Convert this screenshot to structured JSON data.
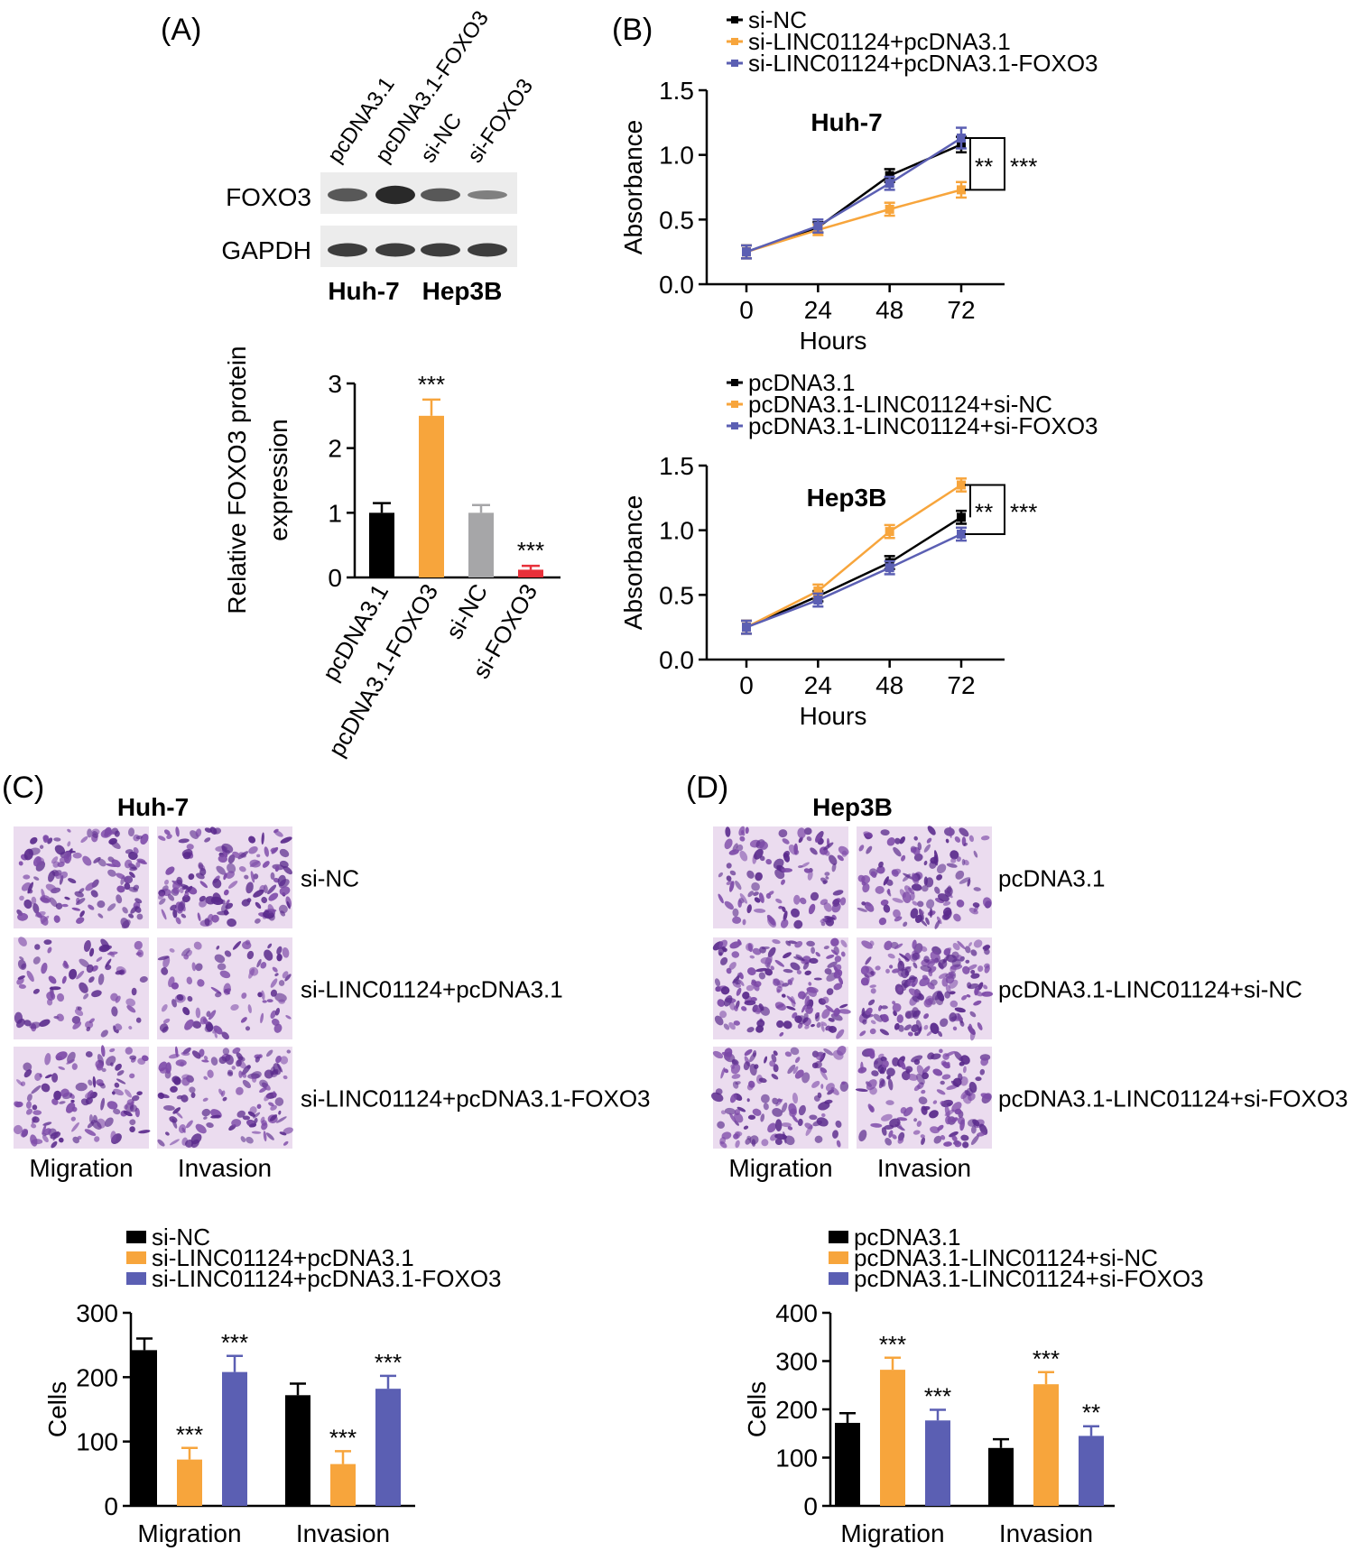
{
  "panel_labels": {
    "a": "(A)",
    "b": "(B)",
    "c": "(C)",
    "d": "(D)"
  },
  "colors": {
    "black": "#000000",
    "orange": "#f7a53c",
    "purple": "#5b5fb3",
    "gray": "#a6a6a8",
    "red": "#e8303a"
  },
  "blot": {
    "lanes": [
      "pcDNA3.1",
      "pcDNA3.1-FOXO3",
      "si-NC",
      "si-FOXO3"
    ],
    "rows": [
      "FOXO3",
      "GAPDH"
    ],
    "cell_lines": [
      "Huh-7",
      "Hep3B"
    ],
    "foxo3_intensity": [
      0.55,
      0.9,
      0.55,
      0.25
    ],
    "gapdh_intensity": [
      0.75,
      0.75,
      0.75,
      0.75
    ]
  },
  "micro": {
    "c_title": "Huh-7",
    "c_rows": [
      "si-NC",
      "si-LINC01124+pcDNA3.1",
      "si-LINC01124+pcDNA3.1-FOXO3"
    ],
    "c_cols": [
      "Migration",
      "Invasion"
    ],
    "c_density": [
      0.55,
      0.25,
      0.5
    ],
    "d_title": "Hep3B",
    "d_rows": [
      "pcDNA3.1",
      "pcDNA3.1-LINC01124+si-NC",
      "pcDNA3.1-LINC01124+si-FOXO3"
    ],
    "d_cols": [
      "Migration",
      "Invasion"
    ],
    "d_density": [
      0.45,
      0.8,
      0.55
    ]
  },
  "chart_data": [
    {
      "id": "a-bar",
      "type": "bar",
      "ylabel": "Relative FOXO3 protein expression",
      "ylabel_lines": [
        "Relative FOXO3 protein",
        "expression"
      ],
      "categories": [
        "pcDNA3.1",
        "pcDNA3.1-FOXO3",
        "si-NC",
        "si-FOXO3"
      ],
      "values": [
        1.0,
        2.5,
        1.0,
        0.12
      ],
      "errors": [
        0.15,
        0.25,
        0.12,
        0.06
      ],
      "bar_colors": [
        "#000000",
        "#f7a53c",
        "#a6a6a8",
        "#e8303a"
      ],
      "annotations": [
        "",
        "***",
        "",
        "***"
      ],
      "ylim": [
        0,
        3
      ],
      "yticks": [
        0,
        1,
        2,
        3
      ],
      "ytick_labels": [
        "0",
        "1",
        "2",
        "3"
      ]
    },
    {
      "id": "b-huh7",
      "type": "line",
      "title": "Huh-7",
      "xlabel": "Hours",
      "ylabel": "Absorbance",
      "x": [
        0,
        24,
        48,
        72
      ],
      "xtick_labels": [
        "0",
        "24",
        "48",
        "72"
      ],
      "ylim": [
        0,
        1.5
      ],
      "yticks": [
        0,
        0.5,
        1.0,
        1.5
      ],
      "ytick_labels": [
        "0.0",
        "0.5",
        "1.0",
        "1.5"
      ],
      "series": [
        {
          "name": "si-NC",
          "color": "#000000",
          "values": [
            0.25,
            0.44,
            0.84,
            1.08
          ],
          "errors": [
            0.05,
            0.04,
            0.05,
            0.06
          ]
        },
        {
          "name": "si-LINC01124+pcDNA3.1",
          "color": "#f7a53c",
          "values": [
            0.25,
            0.42,
            0.58,
            0.73
          ],
          "errors": [
            0.05,
            0.04,
            0.05,
            0.06
          ]
        },
        {
          "name": "si-LINC01124+pcDNA3.1-FOXO3",
          "color": "#5b5fb3",
          "values": [
            0.25,
            0.45,
            0.78,
            1.13
          ],
          "errors": [
            0.05,
            0.05,
            0.05,
            0.08
          ]
        }
      ],
      "sig_inner": "**",
      "sig_outer": "***"
    },
    {
      "id": "b-hep3b",
      "type": "line",
      "title": "Hep3B",
      "xlabel": "Hours",
      "ylabel": "Absorbance",
      "x": [
        0,
        24,
        48,
        72
      ],
      "xtick_labels": [
        "0",
        "24",
        "48",
        "72"
      ],
      "ylim": [
        0,
        1.5
      ],
      "yticks": [
        0,
        0.5,
        1.0,
        1.5
      ],
      "ytick_labels": [
        "0.0",
        "0.5",
        "1.0",
        "1.5"
      ],
      "series": [
        {
          "name": "pcDNA3.1",
          "color": "#000000",
          "values": [
            0.25,
            0.49,
            0.75,
            1.1
          ],
          "errors": [
            0.05,
            0.04,
            0.05,
            0.05
          ]
        },
        {
          "name": "pcDNA3.1-LINC01124+si-NC",
          "color": "#f7a53c",
          "values": [
            0.25,
            0.53,
            0.99,
            1.35
          ],
          "errors": [
            0.05,
            0.05,
            0.05,
            0.05
          ]
        },
        {
          "name": "pcDNA3.1-LINC01124+si-FOXO3",
          "color": "#5b5fb3",
          "values": [
            0.25,
            0.46,
            0.71,
            0.97
          ],
          "errors": [
            0.05,
            0.05,
            0.05,
            0.05
          ]
        }
      ],
      "sig_inner": "**",
      "sig_outer": "***"
    },
    {
      "id": "c-cells",
      "type": "bar",
      "ylabel": "Cells",
      "categories": [
        "Migration",
        "Invasion"
      ],
      "ylim": [
        0,
        300
      ],
      "yticks": [
        0,
        100,
        200,
        300
      ],
      "ytick_labels": [
        "0",
        "100",
        "200",
        "300"
      ],
      "series": [
        {
          "name": "si-NC",
          "color": "#000000",
          "values": [
            242,
            172
          ],
          "errors": [
            18,
            18
          ],
          "annotations": [
            "",
            ""
          ]
        },
        {
          "name": "si-LINC01124+pcDNA3.1",
          "color": "#f7a53c",
          "values": [
            72,
            65
          ],
          "errors": [
            18,
            20
          ],
          "annotations": [
            "***",
            "***"
          ]
        },
        {
          "name": "si-LINC01124+pcDNA3.1-FOXO3",
          "color": "#5b5fb3",
          "values": [
            208,
            182
          ],
          "errors": [
            25,
            20
          ],
          "annotations": [
            "***",
            "***"
          ]
        }
      ]
    },
    {
      "id": "d-cells",
      "type": "bar",
      "ylabel": "Cells",
      "categories": [
        "Migration",
        "Invasion"
      ],
      "ylim": [
        0,
        400
      ],
      "yticks": [
        0,
        100,
        200,
        300,
        400
      ],
      "ytick_labels": [
        "0",
        "100",
        "200",
        "300",
        "400"
      ],
      "series": [
        {
          "name": "pcDNA3.1",
          "color": "#000000",
          "values": [
            172,
            120
          ],
          "errors": [
            20,
            18
          ],
          "annotations": [
            "",
            ""
          ]
        },
        {
          "name": "pcDNA3.1-LINC01124+si-NC",
          "color": "#f7a53c",
          "values": [
            282,
            252
          ],
          "errors": [
            25,
            25
          ],
          "annotations": [
            "***",
            "***"
          ]
        },
        {
          "name": "pcDNA3.1-LINC01124+si-FOXO3",
          "color": "#5b5fb3",
          "values": [
            177,
            145
          ],
          "errors": [
            22,
            20
          ],
          "annotations": [
            "***",
            "**"
          ]
        }
      ]
    }
  ]
}
